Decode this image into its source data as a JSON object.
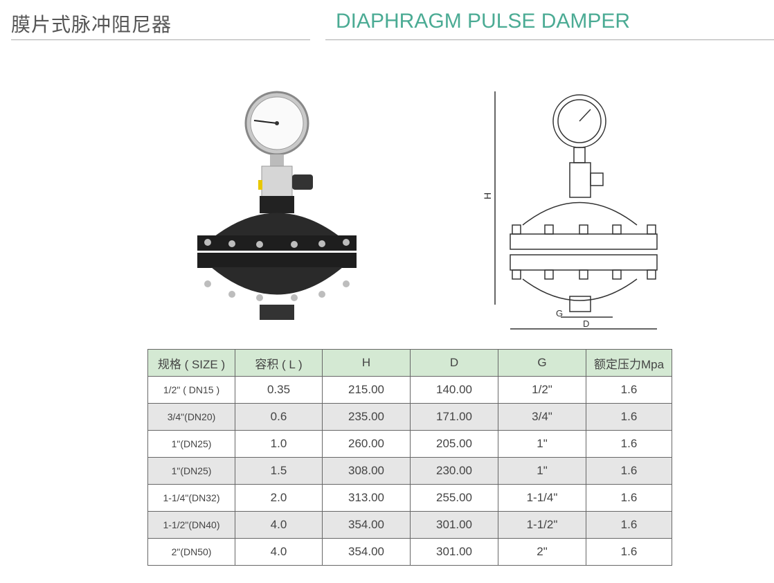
{
  "header": {
    "title_cn": "膜片式脉冲阻尼器",
    "title_en": "DIAPHRAGM PULSE DAMPER"
  },
  "colors": {
    "accent": "#4bab94",
    "table_header": "#d4e9d3",
    "alt_row": "#e6e6e6"
  },
  "drawing": {
    "label_h": "H",
    "label_g": "G",
    "label_d": "D"
  },
  "table": {
    "headers": [
      "规格 ( SIZE )",
      "容积 ( L )",
      "H",
      "D",
      "G",
      "额定压力Mpa"
    ],
    "rows": [
      [
        "1/2\" ( DN15 )",
        "0.35",
        "215.00",
        "140.00",
        "1/2\"",
        "1.6"
      ],
      [
        "3/4\"(DN20)",
        "0.6",
        "235.00",
        "171.00",
        "3/4\"",
        "1.6"
      ],
      [
        "1\"(DN25)",
        "1.0",
        "260.00",
        "205.00",
        "1\"",
        "1.6"
      ],
      [
        "1\"(DN25)",
        "1.5",
        "308.00",
        "230.00",
        "1\"",
        "1.6"
      ],
      [
        "1-1/4\"(DN32)",
        "2.0",
        "313.00",
        "255.00",
        "1-1/4\"",
        "1.6"
      ],
      [
        "1-1/2\"(DN40)",
        "4.0",
        "354.00",
        "301.00",
        "1-1/2\"",
        "1.6"
      ],
      [
        "2\"(DN50)",
        "4.0",
        "354.00",
        "301.00",
        "2\"",
        "1.6"
      ]
    ]
  }
}
